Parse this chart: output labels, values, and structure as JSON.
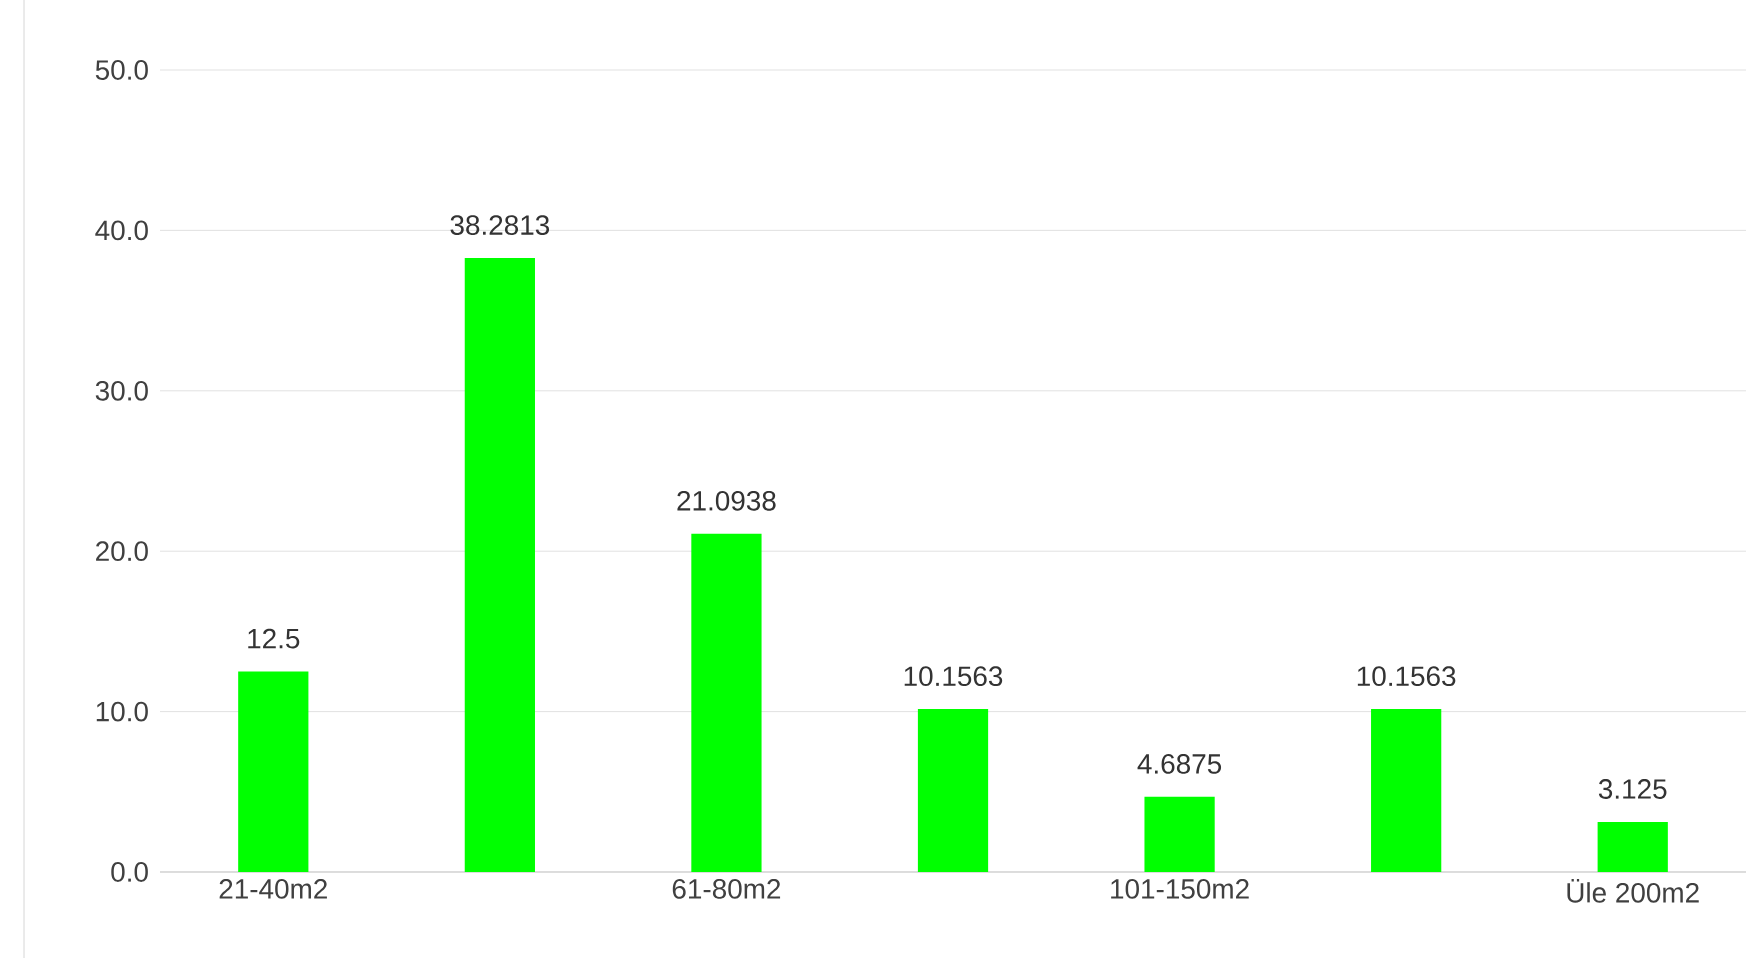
{
  "chart_data": {
    "type": "bar",
    "categories": [
      "21-40m2",
      null,
      "61-80m2",
      null,
      "101-150m2",
      null,
      "Üle 200m2"
    ],
    "values": [
      12.5,
      38.2813,
      21.0938,
      10.1563,
      4.6875,
      10.1563,
      3.125
    ],
    "value_labels": [
      "12.5",
      "38.2813",
      "21.0938",
      "10.1563",
      "4.6875",
      "10.1563",
      "3.125"
    ],
    "color": "#00ff00",
    "ylim": [
      0,
      50
    ],
    "yticks": [
      {
        "value": 0,
        "label": "0.0"
      },
      {
        "value": 10,
        "label": "10.0"
      },
      {
        "value": 20,
        "label": "20.0"
      },
      {
        "value": 30,
        "label": "30.0"
      },
      {
        "value": 40,
        "label": "40.0"
      },
      {
        "value": 50,
        "label": "50.0"
      }
    ],
    "grid": "y"
  }
}
